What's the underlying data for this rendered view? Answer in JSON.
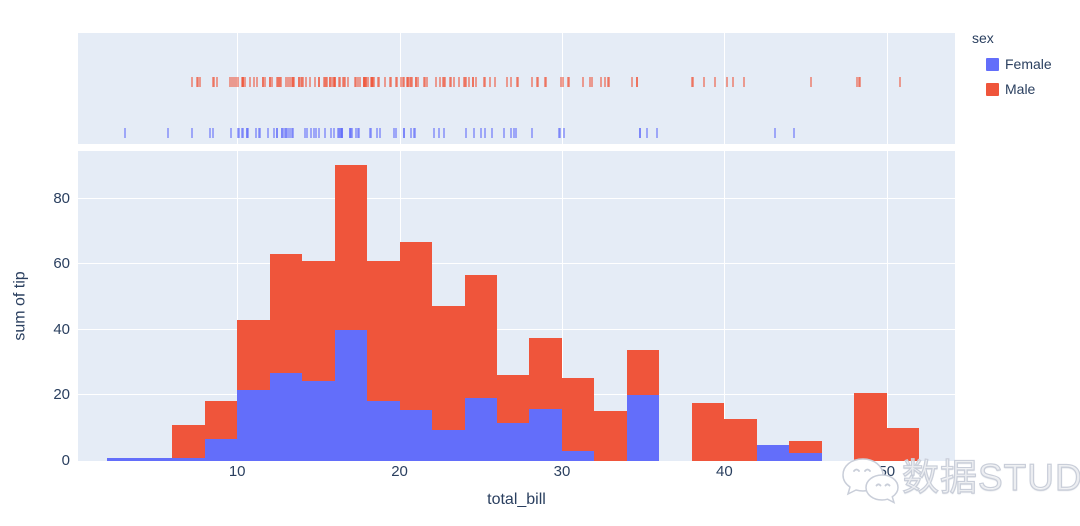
{
  "figure": {
    "watermark_text": "数据STUDIO",
    "colors": {
      "female": "#636efa",
      "male": "#ef553b",
      "plot_background": "#e5ecf6",
      "gridline": "#ffffff",
      "text": "#2a3f5f"
    }
  },
  "legend": {
    "title": "sex",
    "items": [
      {
        "label": "Female",
        "color": "#636efa"
      },
      {
        "label": "Male",
        "color": "#ef553b"
      }
    ]
  },
  "axes": {
    "x": {
      "title": "total_bill",
      "ticks": [
        10,
        20,
        30,
        40,
        50
      ],
      "range": [
        0.2,
        54.2
      ]
    },
    "y": {
      "title": "sum of tip",
      "ticks": [
        0,
        20,
        40,
        60,
        80
      ],
      "range": [
        0,
        94.6
      ]
    }
  },
  "chart_data": {
    "type": "bar",
    "subtype": "stacked-histogram-with-marginal-rug",
    "x_field": "total_bill",
    "y_field": "sum of tip",
    "color_field": "sex",
    "bin_width": 2,
    "bin_starts": [
      2,
      4,
      6,
      8,
      10,
      12,
      14,
      16,
      18,
      20,
      22,
      24,
      26,
      28,
      30,
      32,
      34,
      36,
      38,
      40,
      42,
      44,
      46,
      48,
      50
    ],
    "series": [
      {
        "name": "Female",
        "color": "#636efa",
        "values": [
          1.0,
          1.0,
          1.0,
          6.7,
          21.6,
          27.0,
          24.5,
          39.9,
          18.3,
          15.6,
          9.6,
          19.3,
          11.6,
          15.8,
          3.1,
          0,
          20.0,
          0,
          0,
          0,
          5.0,
          2.5,
          0,
          0,
          0
        ]
      },
      {
        "name": "Male",
        "color": "#ef553b",
        "values": [
          0,
          0,
          10.0,
          11.5,
          21.5,
          36.1,
          36.5,
          50.4,
          42.7,
          51.2,
          37.7,
          37.5,
          14.5,
          21.6,
          22.3,
          15.3,
          13.9,
          0,
          17.6,
          12.7,
          0,
          3.5,
          0,
          20.7,
          10.0
        ]
      }
    ],
    "rug": {
      "Female": [
        16.99,
        24.59,
        35.26,
        14.83,
        10.33,
        16.97,
        20.29,
        15.77,
        19.65,
        15.06,
        20.69,
        16.93,
        10.29,
        34.81,
        26.41,
        16.45,
        3.07,
        17.07,
        26.86,
        25.28,
        14.73,
        10.07,
        34.83,
        5.75,
        16.32,
        22.75,
        11.35,
        15.38,
        22.42,
        20.92,
        14.31,
        7.25,
        25.71,
        17.31,
        10.65,
        12.43,
        24.08,
        13.42,
        12.48,
        29.8,
        14.52,
        11.38,
        20.27,
        11.17,
        12.26,
        18.26,
        8.51,
        14.15,
        13.16,
        17.47,
        27.05,
        16.43,
        8.35,
        18.64,
        11.87,
        29.85,
        25.0,
        13.39,
        16.21,
        17.51,
        10.59,
        10.63,
        9.6,
        20.9,
        18.15,
        19.81,
        43.11,
        13.0,
        12.74,
        13.0,
        16.4,
        16.47,
        12.76,
        13.27,
        28.17,
        12.9,
        30.14,
        15.98,
        16.27,
        10.09,
        22.12,
        35.83,
        27.18,
        18.78,
        44.3
      ],
      "Male": [
        10.34,
        21.01,
        23.68,
        25.29,
        8.77,
        26.88,
        15.04,
        14.78,
        10.27,
        15.42,
        18.43,
        21.58,
        16.29,
        20.65,
        17.92,
        39.42,
        19.82,
        17.81,
        13.37,
        12.69,
        21.7,
        9.55,
        18.35,
        17.78,
        24.06,
        16.31,
        18.69,
        31.27,
        16.04,
        17.46,
        13.94,
        9.68,
        30.4,
        18.29,
        22.23,
        32.4,
        28.55,
        18.04,
        12.54,
        9.94,
        25.56,
        19.49,
        38.01,
        11.24,
        48.27,
        20.29,
        13.81,
        11.02,
        18.29,
        17.59,
        20.08,
        20.23,
        15.01,
        12.02,
        10.51,
        17.92,
        27.2,
        22.76,
        17.29,
        19.44,
        16.66,
        32.68,
        15.98,
        13.03,
        18.28,
        24.71,
        21.16,
        28.97,
        22.49,
        40.17,
        27.28,
        12.03,
        21.01,
        12.46,
        15.36,
        20.49,
        25.21,
        18.24,
        14.0,
        38.07,
        23.95,
        29.93,
        11.69,
        14.26,
        15.95,
        8.52,
        22.82,
        19.08,
        10.33,
        16.0,
        34.3,
        41.19,
        9.78,
        7.51,
        14.07,
        13.13,
        17.26,
        24.55,
        19.77,
        48.17,
        16.49,
        21.5,
        12.66,
        13.81,
        24.52,
        20.76,
        31.71,
        50.81,
        15.81,
        7.25,
        31.85,
        16.82,
        32.9,
        17.89,
        14.48,
        34.63,
        34.65,
        23.33,
        45.35,
        23.17,
        40.55,
        20.69,
        30.46,
        23.1,
        15.69,
        28.44,
        15.48,
        16.58,
        7.56,
        10.34,
        13.51,
        18.71,
        20.53,
        26.59,
        38.73,
        24.27,
        30.06,
        25.89,
        48.33,
        28.15,
        11.59,
        7.74,
        12.16,
        13.42,
        8.58,
        13.42,
        20.45,
        13.28,
        24.01,
        15.69,
        11.61,
        10.77,
        15.53,
        10.07,
        12.6,
        32.83,
        29.03,
        22.67,
        17.82
      ]
    },
    "x_range": [
      0.2,
      54.2
    ],
    "y_range": [
      0,
      94.6
    ],
    "grid": true,
    "legend_position": "top-right"
  }
}
